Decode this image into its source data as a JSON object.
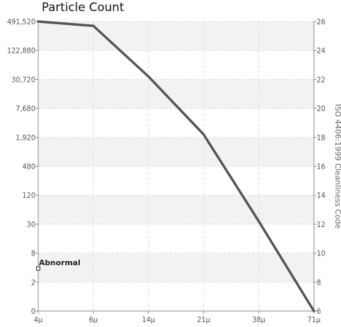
{
  "chart_data": {
    "type": "line",
    "title": "Particle Count",
    "x_tick_labels": [
      "4μ",
      "6μ",
      "14μ",
      "21μ",
      "38μ",
      "71μ"
    ],
    "left_tick_labels": [
      "0",
      "2",
      "8",
      "30",
      "120",
      "480",
      "1,920",
      "7,680",
      "30,720",
      "122,880",
      "491,520"
    ],
    "right_axis_label": "ISO 4406:1999 Cleanliness Code",
    "right_tick_labels": [
      "6",
      "8",
      "10",
      "12",
      "14",
      "16",
      "18",
      "20",
      "22",
      "24",
      "26"
    ],
    "right_range": [
      6,
      26
    ],
    "grid": true,
    "series": [
      {
        "color": "#555555",
        "points": [
          {
            "x": "4μ",
            "code": 26
          },
          {
            "x": "6μ",
            "code": 25.7
          },
          {
            "x": "14μ",
            "code": 22.2
          },
          {
            "x": "21μ",
            "code": 18.2
          },
          {
            "x": "38μ",
            "code": 12.2
          },
          {
            "x": "71μ",
            "code": 6
          }
        ]
      }
    ],
    "annotations": [
      {
        "text": "Abnormal",
        "x": "4μ",
        "code": 9.3
      }
    ]
  }
}
